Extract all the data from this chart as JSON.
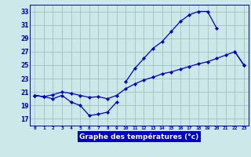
{
  "title": "Graphe des températures (°c)",
  "x_labels": [
    "0",
    "1",
    "2",
    "3",
    "4",
    "5",
    "6",
    "7",
    "8",
    "9",
    "10",
    "11",
    "12",
    "13",
    "14",
    "15",
    "16",
    "17",
    "18",
    "19",
    "20",
    "21",
    "22",
    "23"
  ],
  "hours": [
    0,
    1,
    2,
    3,
    4,
    5,
    6,
    7,
    8,
    9,
    10,
    11,
    12,
    13,
    14,
    15,
    16,
    17,
    18,
    19,
    20,
    21,
    22,
    23
  ],
  "temp_upper": [
    20.5,
    20.3,
    null,
    null,
    null,
    null,
    null,
    null,
    null,
    null,
    22.5,
    24.5,
    26.0,
    27.5,
    28.5,
    30.0,
    31.5,
    32.5,
    33.0,
    33.0,
    30.5,
    null,
    27.0,
    25.0
  ],
  "temp_lower": [
    20.5,
    20.3,
    20.0,
    20.5,
    19.5,
    19.0,
    17.5,
    17.7,
    18.0,
    19.5,
    null,
    null,
    null,
    null,
    null,
    null,
    null,
    null,
    null,
    null,
    null,
    null,
    null,
    null
  ],
  "temp_trend": [
    20.5,
    20.3,
    20.6,
    21.0,
    20.8,
    20.5,
    20.2,
    20.3,
    20.0,
    20.5,
    21.5,
    22.2,
    22.8,
    23.2,
    23.7,
    24.0,
    24.4,
    24.8,
    25.2,
    25.5,
    26.0,
    26.5,
    27.0,
    25.0
  ],
  "ylim": [
    16,
    34
  ],
  "yticks": [
    17,
    19,
    21,
    23,
    25,
    27,
    29,
    31,
    33
  ],
  "xlim": [
    -0.5,
    23.5
  ],
  "bg_color": "#cce8e8",
  "line_color": "#0000cc",
  "grid_color": "#99bbbb",
  "xlabel_bg": "#0000cc",
  "xlabel_fg": "#ffffff"
}
